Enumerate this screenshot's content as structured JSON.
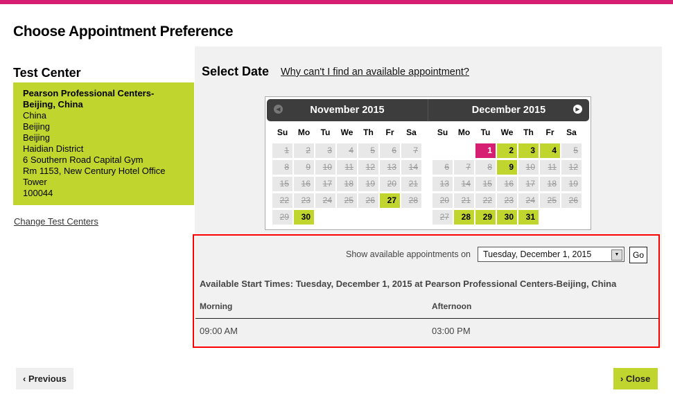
{
  "page_title": "Choose Appointment Preference",
  "test_center": {
    "heading": "Test Center",
    "name": "Pearson Professional Centers-Beijing, China",
    "address_lines": [
      "China",
      "Beijing",
      "Beijing",
      "Haidian District",
      "6 Southern Road Capital Gym",
      "Rm 1153, New Century Hotel Office Tower",
      "100044"
    ],
    "change_link": "Change Test Centers"
  },
  "select_date": {
    "heading": "Select Date",
    "why_link": "Why can't I find an available appointment?"
  },
  "calendar": {
    "weekdays": [
      "Su",
      "Mo",
      "Tu",
      "We",
      "Th",
      "Fr",
      "Sa"
    ],
    "months": [
      {
        "title": "November 2015",
        "start_weekday": 0,
        "days": 30,
        "available": [
          27,
          30
        ],
        "selected": null
      },
      {
        "title": "December 2015",
        "start_weekday": 2,
        "days": 31,
        "available": [
          2,
          3,
          4,
          9,
          28,
          29,
          30,
          31
        ],
        "selected": 1
      }
    ]
  },
  "availability": {
    "show_label": "Show available appointments on",
    "selected_date": "Tuesday, December 1, 2015",
    "go_label": "Go",
    "heading": "Available Start Times: Tuesday, December 1, 2015 at Pearson Professional Centers-Beijing, China",
    "columns": [
      "Morning",
      "Afternoon"
    ],
    "times": [
      "09:00 AM",
      "03:00 PM"
    ]
  },
  "footer": {
    "previous_label": "Previous",
    "close_label": "Close"
  },
  "colors": {
    "accent": "#d61f73",
    "available": "#c1d52f",
    "highlight_border": "#ff0000"
  }
}
